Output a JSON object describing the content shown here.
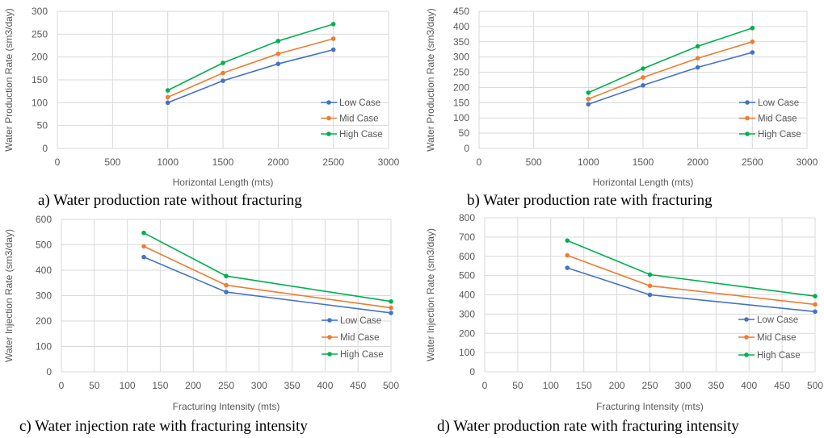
{
  "chart_data": [
    {
      "type": "line",
      "caption": "a) Water production rate without fracturing",
      "xlabel": "Horizontal Length (mts)",
      "ylabel": "Water Production Rate (sm3/day)",
      "xlim": [
        0,
        3000
      ],
      "xticks": [
        0,
        500,
        1000,
        1500,
        2000,
        2500,
        3000
      ],
      "ylim": [
        0,
        300
      ],
      "yticks": [
        0,
        50,
        100,
        150,
        200,
        250,
        300
      ],
      "x": [
        1000,
        1500,
        2000,
        2500
      ],
      "grid": true,
      "legend_position": "bottom-right",
      "series": [
        {
          "name": "Low Case",
          "color": "#4472C4",
          "values": [
            100,
            148,
            185,
            216
          ]
        },
        {
          "name": "Mid Case",
          "color": "#ED7D31",
          "values": [
            112,
            165,
            207,
            240
          ]
        },
        {
          "name": "High Case",
          "color": "#00B050",
          "values": [
            127,
            187,
            235,
            272
          ]
        }
      ]
    },
    {
      "type": "line",
      "caption": "b) Water production rate with fracturing",
      "xlabel": "Horizontal Length (mts)",
      "ylabel": "Water Production Rate (sm3/day)",
      "xlim": [
        0,
        3000
      ],
      "xticks": [
        0,
        500,
        1000,
        1500,
        2000,
        2500,
        3000
      ],
      "ylim": [
        0,
        450
      ],
      "yticks": [
        0,
        50,
        100,
        150,
        200,
        250,
        300,
        350,
        400,
        450
      ],
      "x": [
        1000,
        1500,
        2000,
        2500
      ],
      "grid": true,
      "legend_position": "bottom-right",
      "series": [
        {
          "name": "Low Case",
          "color": "#4472C4",
          "values": [
            145,
            207,
            266,
            315
          ]
        },
        {
          "name": "Mid Case",
          "color": "#ED7D31",
          "values": [
            162,
            233,
            296,
            350
          ]
        },
        {
          "name": "High Case",
          "color": "#00B050",
          "values": [
            183,
            262,
            335,
            395
          ]
        }
      ]
    },
    {
      "type": "line",
      "caption": "c) Water injection rate with fracturing intensity",
      "xlabel": "Fracturing Intensity (mts)",
      "ylabel": "Water Injection Rate (sm3/day)",
      "xlim": [
        0,
        500
      ],
      "xticks": [
        0,
        50,
        100,
        150,
        200,
        250,
        300,
        350,
        400,
        450,
        500
      ],
      "ylim": [
        0,
        600
      ],
      "yticks": [
        0,
        100,
        200,
        300,
        400,
        500,
        600
      ],
      "x": [
        125,
        250,
        500
      ],
      "grid": true,
      "legend_position": "bottom-right",
      "series": [
        {
          "name": "Low Case",
          "color": "#4472C4",
          "values": [
            452,
            314,
            232
          ]
        },
        {
          "name": "Mid Case",
          "color": "#ED7D31",
          "values": [
            494,
            341,
            252
          ]
        },
        {
          "name": "High Case",
          "color": "#00B050",
          "values": [
            547,
            377,
            277
          ]
        }
      ]
    },
    {
      "type": "line",
      "caption": "d) Water production rate with fracturing intensity",
      "xlabel": "Fracturing Intensity (mts)",
      "ylabel": "Water Injection Rate (sm3/day)",
      "xlim": [
        0,
        500
      ],
      "xticks": [
        0,
        50,
        100,
        150,
        200,
        250,
        300,
        350,
        400,
        450,
        500
      ],
      "ylim": [
        0,
        800
      ],
      "yticks": [
        0,
        100,
        200,
        300,
        400,
        500,
        600,
        700,
        800
      ],
      "x": [
        125,
        250,
        500
      ],
      "grid": true,
      "legend_position": "bottom-right",
      "series": [
        {
          "name": "Low Case",
          "color": "#4472C4",
          "values": [
            540,
            400,
            313
          ]
        },
        {
          "name": "Mid Case",
          "color": "#ED7D31",
          "values": [
            605,
            447,
            350
          ]
        },
        {
          "name": "High Case",
          "color": "#00B050",
          "values": [
            682,
            505,
            393
          ]
        }
      ]
    }
  ]
}
